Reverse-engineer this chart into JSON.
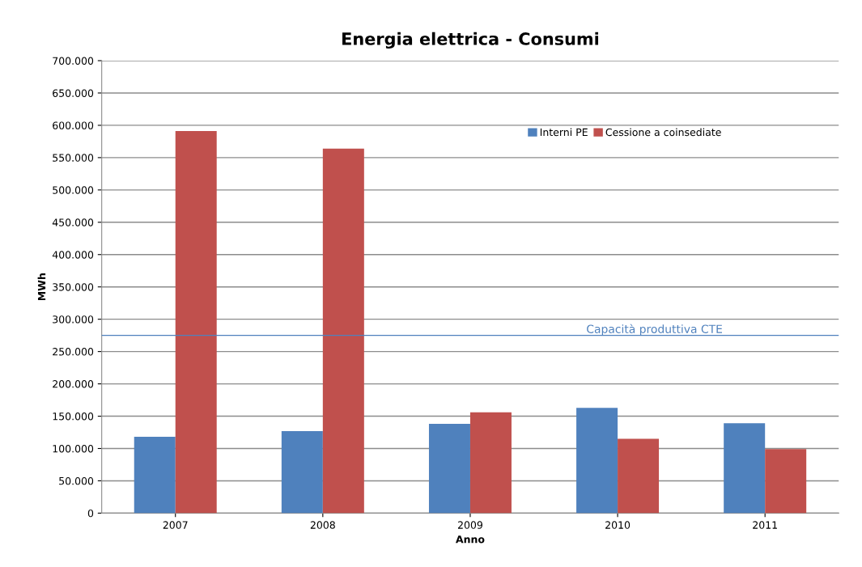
{
  "chart_data": {
    "type": "bar",
    "title": "Energia elettrica - Consumi",
    "xlabel": "Anno",
    "ylabel": "MWh",
    "categories": [
      "2007",
      "2008",
      "2009",
      "2010",
      "2011"
    ],
    "series": [
      {
        "name": "Interni PE",
        "color": "#4f81bd",
        "values": [
          118000,
          127000,
          138000,
          163000,
          139000
        ]
      },
      {
        "name": "Cessione a coinsediate",
        "color": "#c0504d",
        "values": [
          591000,
          564000,
          156000,
          115000,
          99000
        ]
      }
    ],
    "ylim": [
      0,
      700000
    ],
    "yticks": [
      {
        "value": 0,
        "label": "0"
      },
      {
        "value": 50000,
        "label": "50.000"
      },
      {
        "value": 100000,
        "label": "100.000"
      },
      {
        "value": 150000,
        "label": "150.000"
      },
      {
        "value": 200000,
        "label": "200.000"
      },
      {
        "value": 250000,
        "label": "250.000"
      },
      {
        "value": 300000,
        "label": "300.000"
      },
      {
        "value": 350000,
        "label": "350.000"
      },
      {
        "value": 400000,
        "label": "400.000"
      },
      {
        "value": 450000,
        "label": "450.000"
      },
      {
        "value": 500000,
        "label": "500.000"
      },
      {
        "value": 550000,
        "label": "550.000"
      },
      {
        "value": 600000,
        "label": "600.000"
      },
      {
        "value": 650000,
        "label": "650.000"
      },
      {
        "value": 700000,
        "label": "700.000"
      }
    ],
    "ref_lines": [
      {
        "axis": "y",
        "value": 275000,
        "label": "Capacità produttiva CTE",
        "color": "#4f81bd"
      }
    ],
    "grid": "y",
    "legend": "top right"
  }
}
